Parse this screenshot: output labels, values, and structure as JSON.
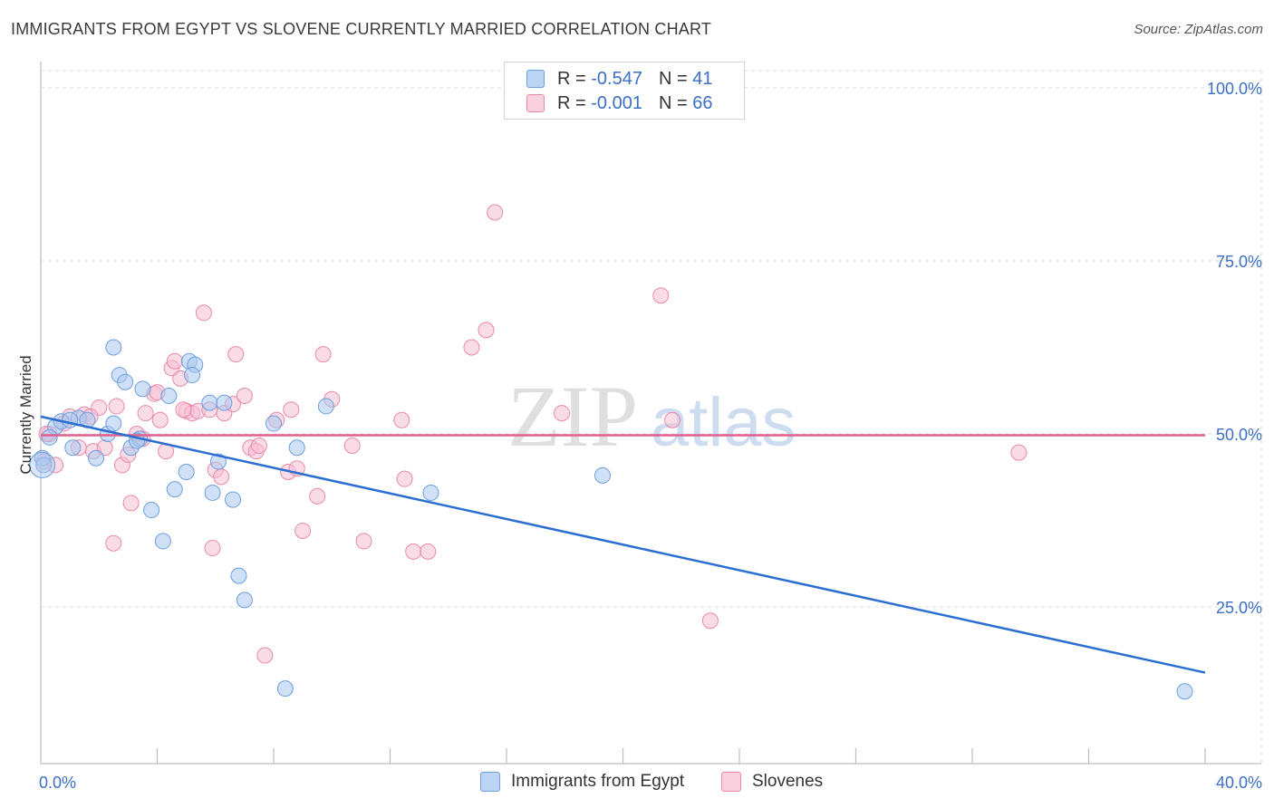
{
  "title": "IMMIGRANTS FROM EGYPT VS SLOVENE CURRENTLY MARRIED CORRELATION CHART",
  "source": "Source: ZipAtlas.com",
  "watermark": {
    "zip": "ZIP",
    "atlas": "atlas"
  },
  "legend": {
    "series1": {
      "r_label": "R =",
      "r_value": "-0.547",
      "n_label": "N =",
      "n_value": "41"
    },
    "series2": {
      "r_label": "R =",
      "r_value": "-0.001",
      "n_label": "N =",
      "n_value": "66"
    }
  },
  "colors": {
    "blue_fill": "#a9c8f0",
    "blue_stroke": "#6d9fe0",
    "blue_line": "#2a6fd0",
    "pink_fill": "#f6bfd3",
    "pink_stroke": "#e88aab",
    "pink_line": "#e0608e",
    "axis_label": "#3a6fc4",
    "grid": "#dcdcdc"
  },
  "chart_data": {
    "type": "scatter",
    "title": "IMMIGRANTS FROM EGYPT VS SLOVENE CURRENTLY MARRIED CORRELATION CHART",
    "ylabel": "Currently Married",
    "xlabel": "",
    "xlim": [
      0,
      40
    ],
    "ylim": [
      0,
      105
    ],
    "x_tick_labels": [
      "0.0%",
      "40.0%"
    ],
    "y_ticks": [
      25,
      50,
      75,
      100
    ],
    "y_tick_labels": [
      "25.0%",
      "50.0%",
      "75.0%",
      "100.0%"
    ],
    "series": [
      {
        "name": "Immigrants from Egypt",
        "trend": {
          "x": [
            0,
            40
          ],
          "y": [
            52.5,
            15.5
          ]
        },
        "points": [
          [
            0.05,
            46.5
          ],
          [
            0.1,
            45.5
          ],
          [
            0.5,
            51
          ],
          [
            0.7,
            51.8
          ],
          [
            1.1,
            48
          ],
          [
            1.3,
            52.3
          ],
          [
            1.6,
            52
          ],
          [
            1.9,
            46.5
          ],
          [
            2.3,
            50
          ],
          [
            2.5,
            51.5
          ],
          [
            2.7,
            58.5
          ],
          [
            2.9,
            57.5
          ],
          [
            3.1,
            48
          ],
          [
            3.4,
            49.3
          ],
          [
            3.5,
            56.5
          ],
          [
            3.8,
            39
          ],
          [
            4.2,
            34.5
          ],
          [
            4.4,
            55.5
          ],
          [
            4.6,
            42
          ],
          [
            5.0,
            44.5
          ],
          [
            5.1,
            60.5
          ],
          [
            5.3,
            60
          ],
          [
            5.2,
            58.5
          ],
          [
            5.8,
            54.5
          ],
          [
            5.9,
            41.5
          ],
          [
            6.1,
            46
          ],
          [
            6.3,
            54.5
          ],
          [
            6.6,
            40.5
          ],
          [
            6.8,
            29.5
          ],
          [
            7.0,
            26
          ],
          [
            8.0,
            51.5
          ],
          [
            8.4,
            13.2
          ],
          [
            8.8,
            48
          ],
          [
            9.8,
            54
          ],
          [
            13.4,
            41.5
          ],
          [
            19.3,
            44
          ],
          [
            39.3,
            12.8
          ],
          [
            2.5,
            62.5
          ],
          [
            1.0,
            52
          ],
          [
            3.3,
            49
          ],
          [
            0.3,
            49.5
          ]
        ]
      },
      {
        "name": "Slovenes",
        "trend": {
          "x": [
            0,
            40
          ],
          "y": [
            49.8,
            49.8
          ]
        },
        "points": [
          [
            0.1,
            46
          ],
          [
            0.3,
            50
          ],
          [
            0.5,
            45.5
          ],
          [
            0.8,
            51.5
          ],
          [
            1.0,
            52.5
          ],
          [
            1.3,
            48
          ],
          [
            1.5,
            52.8
          ],
          [
            1.8,
            47.5
          ],
          [
            2.0,
            53.8
          ],
          [
            2.2,
            48
          ],
          [
            2.5,
            34.2
          ],
          [
            2.6,
            54
          ],
          [
            2.8,
            45.5
          ],
          [
            3.0,
            47
          ],
          [
            3.1,
            40
          ],
          [
            3.3,
            50
          ],
          [
            3.5,
            49.3
          ],
          [
            3.6,
            53
          ],
          [
            3.9,
            55.8
          ],
          [
            4.0,
            56
          ],
          [
            4.1,
            52
          ],
          [
            4.3,
            47.5
          ],
          [
            4.5,
            59.5
          ],
          [
            4.6,
            60.5
          ],
          [
            4.8,
            58
          ],
          [
            5.0,
            53.3
          ],
          [
            5.2,
            53
          ],
          [
            5.4,
            53.3
          ],
          [
            5.6,
            67.5
          ],
          [
            5.8,
            53.5
          ],
          [
            5.9,
            33.5
          ],
          [
            6.0,
            44.8
          ],
          [
            6.2,
            43.8
          ],
          [
            6.3,
            53
          ],
          [
            6.6,
            54.3
          ],
          [
            6.7,
            61.5
          ],
          [
            7.0,
            55.5
          ],
          [
            7.2,
            48
          ],
          [
            7.4,
            47.5
          ],
          [
            7.5,
            48.3
          ],
          [
            7.7,
            18
          ],
          [
            8.1,
            52
          ],
          [
            8.5,
            44.5
          ],
          [
            8.6,
            53.5
          ],
          [
            8.8,
            45
          ],
          [
            9.0,
            36
          ],
          [
            9.5,
            41
          ],
          [
            9.7,
            61.5
          ],
          [
            10.0,
            55
          ],
          [
            10.7,
            48.3
          ],
          [
            11.1,
            34.5
          ],
          [
            12.4,
            52
          ],
          [
            12.5,
            43.5
          ],
          [
            12.8,
            33
          ],
          [
            13.3,
            33
          ],
          [
            14.8,
            62.5
          ],
          [
            15.3,
            65
          ],
          [
            15.6,
            82
          ],
          [
            17.9,
            53
          ],
          [
            21.3,
            70
          ],
          [
            21.7,
            52
          ],
          [
            23.0,
            23
          ],
          [
            33.6,
            47.3
          ],
          [
            0.2,
            50
          ],
          [
            1.7,
            52.5
          ],
          [
            4.9,
            53.5
          ]
        ]
      }
    ],
    "legend_labels": [
      "Immigrants from Egypt",
      "Slovenes"
    ]
  }
}
